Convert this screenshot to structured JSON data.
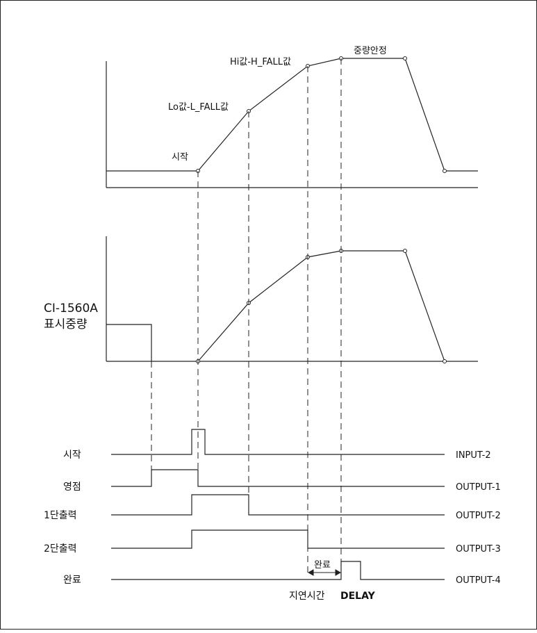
{
  "top_graph": {
    "start": "시작",
    "lo": "Lo값-L_FALL값",
    "hi": "Hi값-H_FALL값",
    "stable": "중량안정"
  },
  "display": {
    "model": "CI-1560A",
    "label": "표시중량"
  },
  "signals": [
    {
      "name": "시작",
      "port": "INPUT-2"
    },
    {
      "name": "영점",
      "port": "OUTPUT-1"
    },
    {
      "name": "1단출력",
      "port": "OUTPUT-2"
    },
    {
      "name": "2단출력",
      "port": "OUTPUT-3"
    },
    {
      "name": "완료",
      "port": "OUTPUT-4"
    }
  ],
  "delay": {
    "complete": "완료",
    "delay_kr": "지연시간",
    "delay_en": "DELAY"
  }
}
